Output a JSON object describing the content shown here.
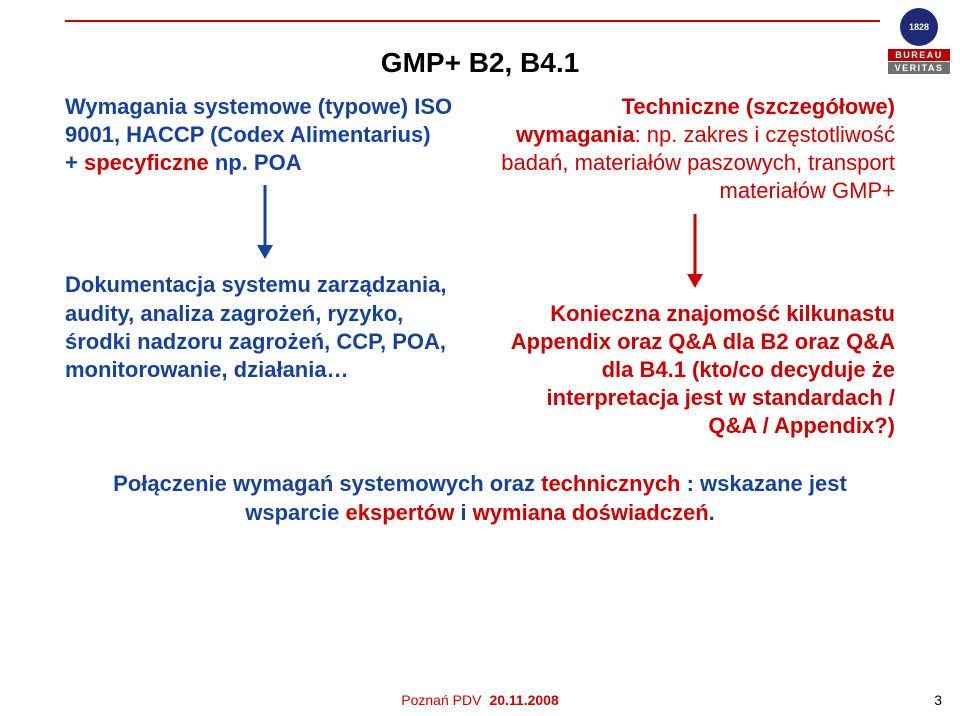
{
  "colors": {
    "red": "#cc0000",
    "blue": "#16429c",
    "text": "#000000",
    "logo_bg": "#1e2a73",
    "band_bureau": "#b70000",
    "band_veritas": "#6f6f6f"
  },
  "sizes": {
    "title_pt": 28,
    "body_pt": 22,
    "bold_pt": 22,
    "footer_pt": 14,
    "page_num_pt": 14
  },
  "arrow": {
    "length": 74,
    "stroke_width": 3,
    "head_w": 16,
    "head_h": 14
  },
  "title": "GMP+ B2, B4.1",
  "left": {
    "top": {
      "lead": "Wymagania systemowe (typowe) ISO 9001, HACCP (Codex Alimentarius)\n+ ",
      "red": "specyficzne",
      "tail": " np. POA"
    },
    "bottom": "Dokumentacja systemu zarządzania, audity, analiza zagrożeń, ryzyko, środki nadzoru zagrożeń, CCP, POA, monitorowanie, działania…"
  },
  "right": {
    "top": {
      "lead": "Techniczne (szczegółowe) wymagania",
      "tail": ": np. zakres i częstotliwość badań, materiałów paszowych, transport materiałów GMP+"
    },
    "bottom": "Konieczna znajomość kilkunastu Appendix oraz Q&A dla B2 oraz Q&A dla B4.1 (kto/co decyduje że interpretacja jest w standardach / Q&A / Appendix?)"
  },
  "bottom": {
    "seg1": "Połączenie wymagań systemowych oraz ",
    "red1": "technicznych",
    "seg2": " : wskazane jest wsparcie ",
    "red2": "ekspertów",
    "seg3": " i ",
    "red3": "wymiana doświadczeń",
    "seg4": "."
  },
  "footer": {
    "label": "Poznań PDV",
    "date": "20.11.2008",
    "page": "3"
  },
  "logo": {
    "year": "1828",
    "line1": "BUREAU",
    "line2": "VERITAS"
  }
}
